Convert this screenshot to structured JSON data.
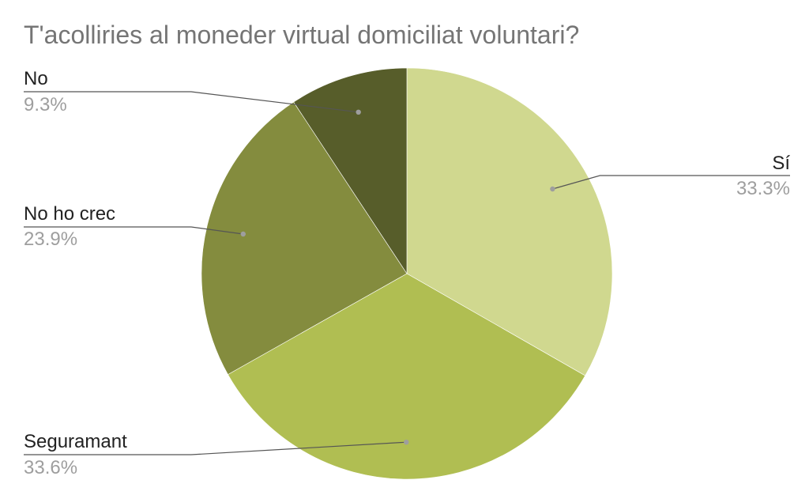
{
  "chart_data": {
    "type": "pie",
    "title": "T'acolliries al moneder virtual domiciliat voluntari?",
    "slices": [
      {
        "label": "Sí",
        "value": 33.3,
        "value_label": "33.3%",
        "color": "#d0d88f"
      },
      {
        "label": "Seguramant",
        "value": 33.6,
        "value_label": "33.6%",
        "color": "#b0be52"
      },
      {
        "label": "No ho crec",
        "value": 23.9,
        "value_label": "23.9%",
        "color": "#848c3e"
      },
      {
        "label": "No",
        "value": 9.3,
        "value_label": "9.3%",
        "color": "#575d2a"
      }
    ],
    "start_angle_deg": 0,
    "direction": "clockwise",
    "legend": "none",
    "label_style": "callout"
  }
}
